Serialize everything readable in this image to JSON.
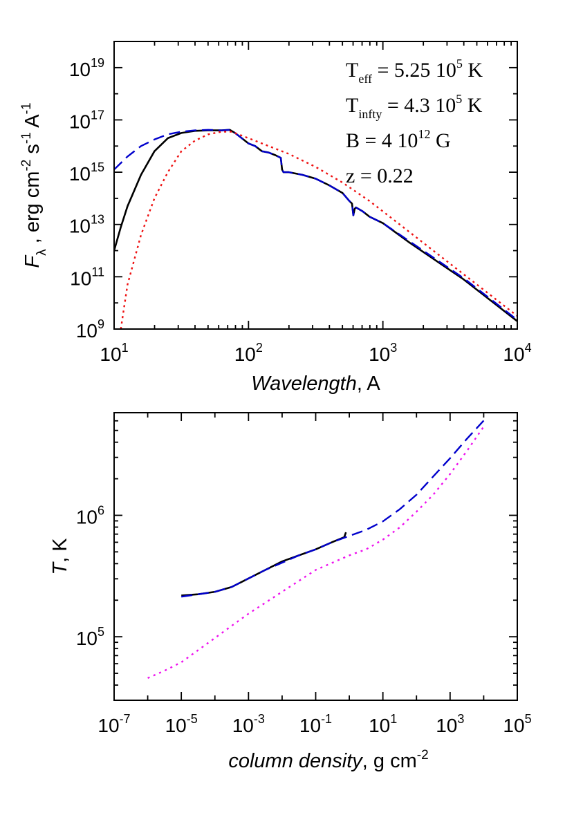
{
  "chart_data": [
    {
      "type": "line",
      "title": "",
      "xlabel": "Wavelength",
      "xlabel_unit": "A",
      "ylabel_symbol": "F",
      "ylabel_subscript": "λ",
      "ylabel_unit_parts": [
        "erg cm",
        "-2",
        " s",
        "-1",
        " A",
        "-1"
      ],
      "xscale": "log",
      "yscale": "log",
      "xlim": [
        10,
        10000
      ],
      "ylim": [
        1000000000.0,
        1e+20
      ],
      "x_tick_labels": [
        {
          "base": "10",
          "exp": "1"
        },
        {
          "base": "10",
          "exp": "2"
        },
        {
          "base": "10",
          "exp": "3"
        },
        {
          "base": "10",
          "exp": "4"
        }
      ],
      "y_tick_labels": [
        {
          "base": "10",
          "exp": "9"
        },
        {
          "base": "10",
          "exp": "11"
        },
        {
          "base": "10",
          "exp": "13"
        },
        {
          "base": "10",
          "exp": "15"
        },
        {
          "base": "10",
          "exp": "17"
        },
        {
          "base": "10",
          "exp": "19"
        }
      ],
      "annotations": [
        {
          "pre": "T",
          "sub": "eff",
          "mid": " = 5.25 10",
          "sup": "5",
          "post": " K"
        },
        {
          "pre": "T",
          "sub": "infty",
          "mid": " = 4.3 10",
          "sup": "5",
          "post": " K"
        },
        {
          "pre": "B = 4 10",
          "sub": "",
          "mid": "",
          "sup": "12",
          "post": " G"
        },
        {
          "pre": "z = 0.22",
          "sub": "",
          "mid": "",
          "sup": "",
          "post": ""
        }
      ],
      "series": [
        {
          "name": "solid",
          "color": "#000000",
          "dash": "",
          "log10_x": [
            1.0,
            1.05,
            1.1,
            1.2,
            1.3,
            1.4,
            1.5,
            1.6,
            1.7,
            1.8,
            1.86,
            1.9,
            1.95,
            2.0,
            2.05,
            2.1,
            2.15,
            2.2,
            2.24,
            2.25,
            2.26,
            2.3,
            2.35,
            2.4,
            2.5,
            2.6,
            2.7,
            2.75,
            2.77,
            2.78,
            2.79,
            2.8,
            2.85,
            2.9,
            3.0,
            3.2,
            3.4,
            3.6,
            3.8,
            4.0
          ],
          "log10_y": [
            12.0,
            12.9,
            13.7,
            14.9,
            15.8,
            16.3,
            16.5,
            16.58,
            16.6,
            16.6,
            16.62,
            16.5,
            16.3,
            16.1,
            16.0,
            15.8,
            15.75,
            15.65,
            15.55,
            15.1,
            15.0,
            15.0,
            14.95,
            14.9,
            14.75,
            14.5,
            14.2,
            13.9,
            13.8,
            13.35,
            13.6,
            13.65,
            13.5,
            13.3,
            13.05,
            12.3,
            11.6,
            10.9,
            10.1,
            9.3
          ]
        },
        {
          "name": "dashed",
          "color": "#0000cc",
          "dash": "16,8",
          "log10_x": [
            1.0,
            1.1,
            1.2,
            1.3,
            1.4,
            1.5,
            1.6,
            1.7,
            1.8,
            1.86,
            1.9,
            1.95,
            2.0,
            2.05,
            2.1,
            2.15,
            2.2,
            2.24,
            2.25,
            2.26,
            2.3,
            2.35,
            2.4,
            2.5,
            2.6,
            2.7,
            2.75,
            2.77,
            2.78,
            2.79,
            2.8,
            2.85,
            2.9,
            3.0,
            3.2,
            3.4,
            3.6,
            3.8,
            4.0
          ],
          "log10_y": [
            15.1,
            15.6,
            16.0,
            16.25,
            16.45,
            16.55,
            16.6,
            16.62,
            16.6,
            16.62,
            16.5,
            16.3,
            16.1,
            16.0,
            15.8,
            15.75,
            15.65,
            15.55,
            15.1,
            15.0,
            15.0,
            14.95,
            14.9,
            14.75,
            14.5,
            14.2,
            13.9,
            13.8,
            13.35,
            13.6,
            13.65,
            13.5,
            13.3,
            13.05,
            12.35,
            11.65,
            10.95,
            10.15,
            9.35
          ]
        },
        {
          "name": "dotted",
          "color": "#ee1111",
          "dash": "3,5",
          "log10_x": [
            1.05,
            1.1,
            1.2,
            1.3,
            1.4,
            1.5,
            1.6,
            1.7,
            1.8,
            1.87,
            1.95,
            2.1,
            2.3,
            2.5,
            2.7,
            2.9,
            3.1,
            3.3,
            3.5,
            3.7,
            3.9,
            4.0
          ],
          "log10_y": [
            9.0,
            10.7,
            12.6,
            14.0,
            15.0,
            15.8,
            16.2,
            16.45,
            16.55,
            16.55,
            16.4,
            16.1,
            15.7,
            15.2,
            14.6,
            13.9,
            13.1,
            12.3,
            11.5,
            10.7,
            9.9,
            9.5
          ]
        }
      ]
    },
    {
      "type": "line",
      "title": "",
      "xlabel": "column density",
      "xlabel_unit_parts": [
        "g cm",
        "-2"
      ],
      "ylabel": "T",
      "ylabel_unit": "K",
      "xscale": "log",
      "yscale": "log",
      "xlim": [
        1e-07,
        100000.0
      ],
      "ylim": [
        30000.0,
        7000000.0
      ],
      "x_tick_labels": [
        {
          "base": "10",
          "exp": "-7"
        },
        {
          "base": "10",
          "exp": "-5"
        },
        {
          "base": "10",
          "exp": "-3"
        },
        {
          "base": "10",
          "exp": "-1"
        },
        {
          "base": "10",
          "exp": "1"
        },
        {
          "base": "10",
          "exp": "3"
        },
        {
          "base": "10",
          "exp": "5"
        }
      ],
      "y_tick_labels": [
        {
          "base": "10",
          "exp": "5"
        },
        {
          "base": "10",
          "exp": "6"
        }
      ],
      "series": [
        {
          "name": "solid",
          "color": "#000000",
          "dash": "",
          "log10_x": [
            -5.0,
            -4.5,
            -4.0,
            -3.5,
            -3.0,
            -2.5,
            -2.0,
            -1.5,
            -1.0,
            -0.5,
            -0.15,
            -0.1
          ],
          "log10_y": [
            5.34,
            5.35,
            5.37,
            5.41,
            5.48,
            5.55,
            5.62,
            5.67,
            5.72,
            5.78,
            5.82,
            5.86
          ]
        },
        {
          "name": "dashed",
          "color": "#0000cc",
          "dash": "16,8",
          "log10_x": [
            -5.0,
            -4.5,
            -4.0,
            -3.5,
            -3.0,
            -2.5,
            -2.0,
            -1.5,
            -1.0,
            -0.5,
            0.0,
            0.5,
            1.0,
            1.5,
            2.0,
            2.5,
            3.0,
            3.5,
            4.0
          ],
          "log10_y": [
            5.33,
            5.35,
            5.37,
            5.41,
            5.48,
            5.55,
            5.61,
            5.67,
            5.72,
            5.78,
            5.83,
            5.88,
            5.95,
            6.05,
            6.17,
            6.32,
            6.47,
            6.63,
            6.78
          ]
        },
        {
          "name": "dotted",
          "color": "#ee11ee",
          "dash": "3,6",
          "log10_x": [
            -6.0,
            -5.5,
            -5.0,
            -4.5,
            -4.0,
            -3.5,
            -3.0,
            -2.5,
            -2.0,
            -1.5,
            -1.0,
            -0.5,
            0.0,
            0.5,
            1.0,
            1.5,
            2.0,
            2.5,
            3.0,
            3.5,
            4.0
          ],
          "log10_y": [
            4.66,
            4.72,
            4.79,
            4.89,
            4.99,
            5.09,
            5.19,
            5.28,
            5.37,
            5.46,
            5.55,
            5.61,
            5.67,
            5.72,
            5.8,
            5.9,
            6.03,
            6.17,
            6.34,
            6.53,
            6.73
          ]
        }
      ]
    }
  ]
}
